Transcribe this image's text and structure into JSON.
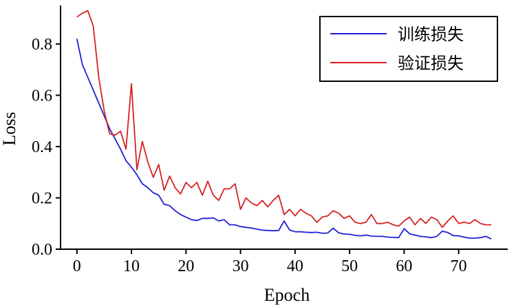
{
  "chart_data": {
    "type": "line",
    "xlabel": "Epoch",
    "ylabel": "Loss",
    "xlim": [
      -3,
      79
    ],
    "ylim": [
      0.0,
      0.95
    ],
    "x_ticks": [
      0,
      10,
      20,
      30,
      40,
      50,
      60,
      70
    ],
    "y_ticks": [
      0.0,
      0.2,
      0.4,
      0.6,
      0.8
    ],
    "y_tick_labels": [
      "0.0",
      "0.2",
      "0.4",
      "0.6",
      "0.8"
    ],
    "grid": false,
    "legend_position": "top-right",
    "series": [
      {
        "name": "训练损失",
        "color": "#1f1fd6",
        "x": [
          0,
          1,
          2,
          3,
          4,
          5,
          6,
          7,
          8,
          9,
          10,
          11,
          12,
          13,
          14,
          15,
          16,
          17,
          18,
          19,
          20,
          21,
          22,
          23,
          24,
          25,
          26,
          27,
          28,
          29,
          30,
          31,
          32,
          33,
          34,
          35,
          36,
          37,
          38,
          39,
          40,
          41,
          42,
          43,
          44,
          45,
          46,
          47,
          48,
          49,
          50,
          51,
          52,
          53,
          54,
          55,
          56,
          57,
          58,
          59,
          60,
          61,
          62,
          63,
          64,
          65,
          66,
          67,
          68,
          69,
          70,
          71,
          72,
          73,
          74,
          75,
          76
        ],
        "values": [
          0.82,
          0.72,
          0.67,
          0.62,
          0.57,
          0.52,
          0.47,
          0.43,
          0.39,
          0.345,
          0.32,
          0.29,
          0.255,
          0.24,
          0.22,
          0.21,
          0.175,
          0.17,
          0.15,
          0.135,
          0.125,
          0.115,
          0.112,
          0.12,
          0.12,
          0.122,
          0.11,
          0.115,
          0.095,
          0.095,
          0.088,
          0.085,
          0.082,
          0.078,
          0.074,
          0.073,
          0.072,
          0.073,
          0.11,
          0.075,
          0.068,
          0.068,
          0.066,
          0.065,
          0.066,
          0.062,
          0.063,
          0.082,
          0.064,
          0.059,
          0.058,
          0.054,
          0.052,
          0.055,
          0.051,
          0.05,
          0.05,
          0.047,
          0.046,
          0.045,
          0.08,
          0.06,
          0.055,
          0.05,
          0.048,
          0.045,
          0.05,
          0.07,
          0.065,
          0.053,
          0.052,
          0.047,
          0.043,
          0.043,
          0.045,
          0.05,
          0.04
        ]
      },
      {
        "name": "验证损失",
        "color": "#d62020",
        "x": [
          0,
          1,
          2,
          3,
          4,
          5,
          6,
          7,
          8,
          9,
          10,
          11,
          12,
          13,
          14,
          15,
          16,
          17,
          18,
          19,
          20,
          21,
          22,
          23,
          24,
          25,
          26,
          27,
          28,
          29,
          30,
          31,
          32,
          33,
          34,
          35,
          36,
          37,
          38,
          39,
          40,
          41,
          42,
          43,
          44,
          45,
          46,
          47,
          48,
          49,
          50,
          51,
          52,
          53,
          54,
          55,
          56,
          57,
          58,
          59,
          60,
          61,
          62,
          63,
          64,
          65,
          66,
          67,
          68,
          69,
          70,
          71,
          72,
          73,
          74,
          75,
          76
        ],
        "values": [
          0.905,
          0.92,
          0.93,
          0.87,
          0.67,
          0.54,
          0.45,
          0.445,
          0.46,
          0.39,
          0.645,
          0.31,
          0.42,
          0.34,
          0.28,
          0.33,
          0.23,
          0.285,
          0.24,
          0.215,
          0.26,
          0.24,
          0.26,
          0.21,
          0.265,
          0.21,
          0.19,
          0.235,
          0.235,
          0.255,
          0.155,
          0.2,
          0.18,
          0.17,
          0.19,
          0.165,
          0.19,
          0.21,
          0.135,
          0.155,
          0.13,
          0.155,
          0.14,
          0.13,
          0.105,
          0.125,
          0.13,
          0.15,
          0.14,
          0.12,
          0.13,
          0.105,
          0.1,
          0.105,
          0.135,
          0.1,
          0.1,
          0.105,
          0.095,
          0.09,
          0.11,
          0.125,
          0.095,
          0.12,
          0.1,
          0.125,
          0.115,
          0.085,
          0.11,
          0.13,
          0.1,
          0.105,
          0.1,
          0.115,
          0.1,
          0.095,
          0.095
        ]
      }
    ]
  }
}
